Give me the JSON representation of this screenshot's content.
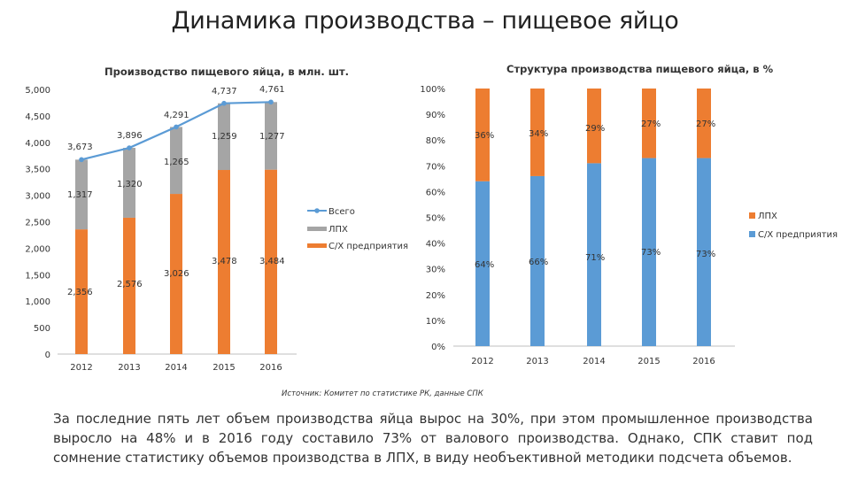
{
  "title": "Динамика производства – пищевое яйцо",
  "source": "Источник: Комитет по статистике РК, данные СПК",
  "note": "За последние пять лет объем производства яйца вырос на 30%, при этом промышленное производства выросло на 48% и в 2016 году составило 73% от валового производства. Однако, СПК ставит под сомнение статистику объемов производства в ЛПХ, в виду необъективной методики подсчета объемов.",
  "colors": {
    "enterprise": "#ED7D31",
    "household": "#A5A5A5",
    "total": "#5B9BD5",
    "axis": "#BFBFBF"
  },
  "chart_data": [
    {
      "type": "bar",
      "stacked": true,
      "title": "Производство пищевого яйца, в млн. шт.",
      "categories": [
        "2012",
        "2013",
        "2014",
        "2015",
        "2016"
      ],
      "series": [
        {
          "name": "С/Х предприятия",
          "values": [
            2356,
            2576,
            3026,
            3478,
            3484
          ],
          "labels": [
            "2,356",
            "2,576",
            "3,026",
            "3,478",
            "3,484"
          ]
        },
        {
          "name": "ЛПХ",
          "values": [
            1317,
            1320,
            1265,
            1259,
            1277
          ],
          "labels": [
            "1,317",
            "1,320",
            "1,265",
            "1,259",
            "1,277"
          ]
        },
        {
          "name": "Всего",
          "type": "line",
          "values": [
            3673,
            3896,
            4291,
            4737,
            4761
          ],
          "labels": [
            "3,673",
            "3,896",
            "4,291",
            "4,737",
            "4,761"
          ]
        }
      ],
      "ylim": [
        0,
        5000
      ],
      "yticks": [
        "0",
        "500",
        "1,000",
        "1,500",
        "2,000",
        "2,500",
        "3,000",
        "3,500",
        "4,000",
        "4,500",
        "5,000"
      ],
      "legend": [
        "Всего",
        "ЛПХ",
        "С/Х предприятия"
      ],
      "legend_position": "right"
    },
    {
      "type": "bar",
      "stacked": true,
      "percent": true,
      "title": "Структура производства пищевого яйца, в %",
      "categories": [
        "2012",
        "2013",
        "2014",
        "2015",
        "2016"
      ],
      "series": [
        {
          "name": "С/Х предприятия",
          "values": [
            64,
            66,
            71,
            73,
            73
          ],
          "labels": [
            "64%",
            "66%",
            "71%",
            "73%",
            "73%"
          ]
        },
        {
          "name": "ЛПХ",
          "values": [
            36,
            34,
            29,
            27,
            27
          ],
          "labels": [
            "36%",
            "34%",
            "29%",
            "27%",
            "27%"
          ]
        }
      ],
      "ylim": [
        0,
        100
      ],
      "yticks": [
        "0%",
        "10%",
        "20%",
        "30%",
        "40%",
        "50%",
        "60%",
        "70%",
        "80%",
        "90%",
        "100%"
      ],
      "legend": [
        "ЛПХ",
        "С/Х предприятия"
      ],
      "legend_position": "right"
    }
  ]
}
